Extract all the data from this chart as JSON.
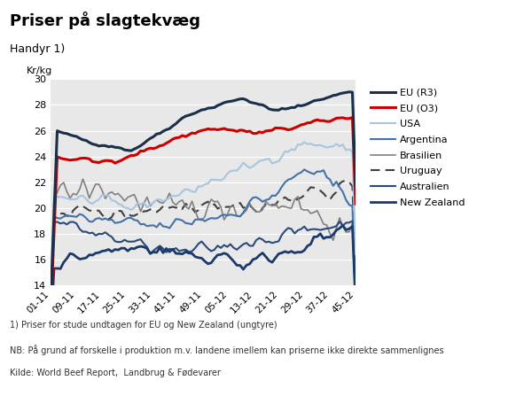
{
  "title": "Priser på slagtekvæg",
  "subtitle": "Handyr 1)",
  "ylabel": "Kr/kg",
  "ylim": [
    14,
    30
  ],
  "yticks": [
    14,
    16,
    18,
    20,
    22,
    24,
    26,
    28,
    30
  ],
  "x_labels": [
    "01-11",
    "09-11",
    "17-11",
    "25-11",
    "33-11",
    "41-11",
    "49-11",
    "05-12",
    "13-12",
    "21-12",
    "29-12",
    "37-12",
    "45-12"
  ],
  "n_points": 96,
  "footnote1": "1) Priser for stude undtagen for EU og New Zealand (ungtyre)",
  "footnote2": "NB: På grund af forskelle i produktion m.v. landene imellem kan priserne ikke direkte sammenlignes",
  "footnote3": "Kilde: World Beef Report,  Landbrug & Fødevarer",
  "bg_color": "#e8e8e8",
  "fig_bg": "#ffffff",
  "series": {
    "EU_R3": {
      "color": "#1a2f4a",
      "linewidth": 2.2,
      "linestyle": "solid",
      "label": "EU (R3)",
      "zorder": 10
    },
    "EU_O3": {
      "color": "#cc0000",
      "linewidth": 2.2,
      "linestyle": "solid",
      "label": "EU (O3)",
      "zorder": 9
    },
    "USA": {
      "color": "#a8c4e0",
      "linewidth": 1.5,
      "linestyle": "solid",
      "label": "USA",
      "zorder": 8
    },
    "Argentina": {
      "color": "#4472a8",
      "linewidth": 1.5,
      "linestyle": "solid",
      "label": "Argentina",
      "zorder": 7
    },
    "Brasilien": {
      "color": "#808080",
      "linewidth": 1.2,
      "linestyle": "solid",
      "label": "Brasilien",
      "zorder": 6
    },
    "Uruguay": {
      "color": "#404040",
      "linewidth": 1.5,
      "linestyle": "dashed",
      "label": "Uruguay",
      "zorder": 5
    },
    "Australien": {
      "color": "#2a4a7a",
      "linewidth": 1.5,
      "linestyle": "solid",
      "label": "Australien",
      "zorder": 7
    },
    "NewZealand": {
      "color": "#1a3a6a",
      "linewidth": 2.0,
      "linestyle": "solid",
      "label": "New Zealand",
      "zorder": 8
    }
  }
}
